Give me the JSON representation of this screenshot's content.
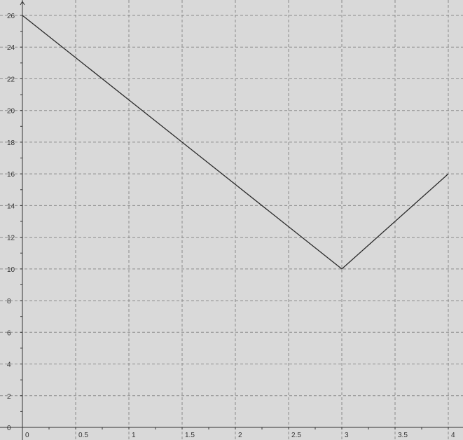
{
  "chart_data": {
    "type": "line",
    "title": "",
    "xlabel": "",
    "ylabel": "",
    "xlim": [
      0,
      4
    ],
    "ylim": [
      0,
      26
    ],
    "grid": true,
    "x_ticks": [
      0,
      0.5,
      1,
      1.5,
      2,
      2.5,
      3,
      3.5,
      4
    ],
    "y_ticks": [
      0,
      2,
      4,
      6,
      8,
      10,
      12,
      14,
      16,
      18,
      20,
      22,
      24,
      26
    ],
    "series": [
      {
        "x": [
          0,
          3,
          4
        ],
        "y": [
          26,
          10,
          16
        ]
      }
    ],
    "colors": {
      "background": "#d9d9d9",
      "grid": "#8c8c8c",
      "axis": "#333333",
      "line": "#2a2a2a",
      "label": "#333333"
    }
  }
}
